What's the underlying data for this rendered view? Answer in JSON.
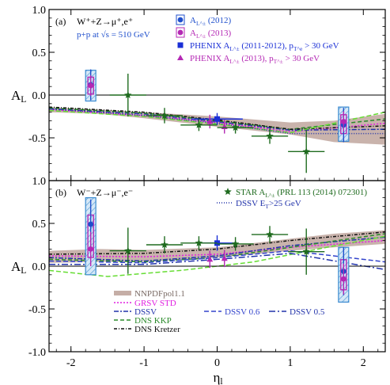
{
  "colors": {
    "star_2012": "#1f4fcc",
    "star_2013": "#b428b4",
    "phenix": "#1a2fd6",
    "star_prl": "#1f6b1f",
    "nnpdf_band": "#b79a90",
    "grsv": "#e020e0",
    "dssv": "#2233aa",
    "dns_kkp": "#2a8a2a",
    "dns_kretzer": "#111111",
    "dssv06": "#3344cc",
    "dssv05": "#2233aa",
    "dssv_et": "#2233aa",
    "lime": "#66dd33"
  },
  "chart_data": [
    {
      "panel_tag": "(a)",
      "type": "scatter",
      "process": "W⁺+Z→μ⁺,e⁺",
      "energy": "p+p at √s = 510 GeV",
      "xlabel": "",
      "ylabel": "A_L",
      "xlim": [
        -2.3,
        2.3
      ],
      "ylim": [
        -1.0,
        1.0
      ],
      "yticks": [
        "1.0",
        "0.5",
        "0.0",
        "-0.5",
        "-1.0"
      ],
      "legend": [
        {
          "key": "star_2012",
          "label": "A_L^± (2012)",
          "marker": "circle"
        },
        {
          "key": "star_2013",
          "label": "A_L^± (2013)",
          "marker": "circle"
        },
        {
          "key": "phenix",
          "label": "PHENIX A_L^± (2011-2012), p_T^e > 30 GeV",
          "marker": "square"
        },
        {
          "key": "phenix13",
          "label": "PHENIX A_L^± (2013), p_T^± > 30 GeV",
          "marker": "triangle"
        }
      ],
      "series": [
        {
          "key": "star_2012",
          "marker": "circle",
          "points": [
            {
              "x": -1.73,
              "y": 0.12,
              "err": 0.18
            },
            {
              "x": 1.73,
              "y": -0.35,
              "err": 0.2
            }
          ]
        },
        {
          "key": "star_2013",
          "marker": "circle",
          "points": [
            {
              "x": -1.73,
              "y": 0.11,
              "err": 0.12
            },
            {
              "x": 1.73,
              "y": -0.31,
              "err": 0.12
            }
          ]
        },
        {
          "key": "phenix",
          "marker": "square",
          "points": [
            {
              "x": 0.0,
              "y": -0.28,
              "err": 0.07,
              "xerr": 0.35
            }
          ]
        },
        {
          "key": "phenix13",
          "marker": "triangle",
          "points": [
            {
              "x": -0.1,
              "y": -0.31,
              "err": 0.08
            },
            {
              "x": 0.1,
              "y": -0.37,
              "err": 0.08
            }
          ]
        },
        {
          "key": "star_prl",
          "marker": "star",
          "points": [
            {
              "x": -1.22,
              "y": 0.0,
              "err": 0.25,
              "xerr": 0.25
            },
            {
              "x": -0.72,
              "y": -0.24,
              "err": 0.09,
              "xerr": 0.25
            },
            {
              "x": -0.25,
              "y": -0.35,
              "err": 0.07,
              "xerr": 0.25
            },
            {
              "x": 0.25,
              "y": -0.38,
              "err": 0.07,
              "xerr": 0.25
            },
            {
              "x": 0.72,
              "y": -0.48,
              "err": 0.09,
              "xerr": 0.25
            },
            {
              "x": 1.22,
              "y": -0.66,
              "err": 0.25,
              "xerr": 0.25
            }
          ]
        }
      ],
      "boxes": [
        {
          "x": -1.73,
          "y": 0.11,
          "dx": 0.07,
          "dy": 0.18
        },
        {
          "x": 1.73,
          "y": -0.34,
          "dx": 0.07,
          "dy": 0.2
        }
      ],
      "band": {
        "x": [
          -2.3,
          -1.6,
          -1.0,
          0.0,
          1.0,
          1.6,
          2.3
        ],
        "low": [
          -0.2,
          -0.22,
          -0.27,
          -0.37,
          -0.46,
          -0.55,
          -0.58
        ],
        "high": [
          -0.14,
          -0.17,
          -0.2,
          -0.25,
          -0.32,
          -0.3,
          -0.22
        ]
      },
      "curves": [
        {
          "key": "grsv",
          "dash": "2,2",
          "x": [
            -2.3,
            -1.0,
            0.0,
            1.0,
            2.3
          ],
          "y": [
            -0.17,
            -0.24,
            -0.32,
            -0.43,
            -0.33
          ]
        },
        {
          "key": "dssv",
          "dash": "6,2,2,2",
          "x": [
            -2.3,
            -1.0,
            0.0,
            1.0,
            2.3
          ],
          "y": [
            -0.16,
            -0.22,
            -0.31,
            -0.41,
            -0.4
          ]
        },
        {
          "key": "dns_kkp",
          "dash": "5,3",
          "x": [
            -2.3,
            -1.0,
            0.0,
            1.0,
            2.3
          ],
          "y": [
            -0.15,
            -0.21,
            -0.3,
            -0.4,
            -0.28
          ]
        },
        {
          "key": "dns_kretzer",
          "dash": "4,2,1,2",
          "x": [
            -2.3,
            -1.0,
            0.0,
            1.0,
            2.3
          ],
          "y": [
            -0.14,
            -0.2,
            -0.29,
            -0.4,
            -0.36
          ]
        },
        {
          "key": "lime",
          "dash": "6,3",
          "x": [
            -2.3,
            -1.0,
            0.0,
            1.0,
            2.3
          ],
          "y": [
            -0.18,
            -0.25,
            -0.34,
            -0.44,
            -0.2
          ]
        },
        {
          "key": "dssv_et",
          "dash": "1,2",
          "x": [
            -2.3,
            -1.0,
            0.0,
            1.0,
            2.3
          ],
          "y": [
            -0.16,
            -0.24,
            -0.33,
            -0.45,
            -0.45
          ]
        }
      ]
    },
    {
      "panel_tag": "(b)",
      "type": "scatter",
      "process": "W⁻+Z→μ⁻,e⁻",
      "xlabel": "η_l",
      "ylabel": "A_L",
      "xlim": [
        -2.3,
        2.3
      ],
      "ylim": [
        -1.0,
        1.0
      ],
      "xticks": [
        "-2",
        "-1",
        "0",
        "1",
        "2"
      ],
      "yticks": [
        "1.0",
        "0.5",
        "0.0",
        "-0.5",
        "-1.0"
      ],
      "legend_top": [
        {
          "key": "star_prl",
          "label": "STAR A_L^± (PRL 113 (2014) 072301)",
          "marker": "star"
        },
        {
          "key": "dssv_et",
          "label": "DSSV E_T>25 GeV",
          "dash": "1,2"
        }
      ],
      "legend_theory": [
        {
          "key": "nnpdf_band",
          "label": "NNPDFpol1.1",
          "band": true
        },
        {
          "key": "grsv",
          "label": "GRSV STD",
          "dash": "2,2"
        },
        {
          "key": "dssv",
          "label": "DSSV",
          "dash": "6,2,2,2"
        },
        {
          "key": "dns_kkp",
          "label": "DNS KKP",
          "dash": "5,3"
        },
        {
          "key": "dns_kretzer",
          "label": "DNS Kretzer",
          "dash": "4,2,1,2"
        },
        {
          "key": "dssv06",
          "label": "DSSV 0.6",
          "dash": "6,3"
        },
        {
          "key": "dssv05",
          "label": "DSSV 0.5",
          "dash": "8,3,2,3"
        }
      ],
      "series": [
        {
          "key": "star_2012",
          "marker": "circle",
          "points": [
            {
              "x": -1.73,
              "y": 0.49,
              "err": 0.29
            },
            {
              "x": 1.73,
              "y": -0.06,
              "err": 0.28
            }
          ]
        },
        {
          "key": "star_2013",
          "marker": "circle",
          "points": [
            {
              "x": -1.73,
              "y": 0.2,
              "err": 0.2
            },
            {
              "x": 1.73,
              "y": -0.15,
              "err": 0.18
            }
          ]
        },
        {
          "key": "phenix",
          "marker": "square",
          "points": [
            {
              "x": 0.0,
              "y": 0.27,
              "err": 0.09,
              "xerr": 0.25
            }
          ]
        },
        {
          "key": "phenix13",
          "marker": "triangle",
          "points": [
            {
              "x": -0.1,
              "y": 0.08,
              "err": 0.1
            },
            {
              "x": 0.1,
              "y": 0.09,
              "err": 0.1
            }
          ]
        },
        {
          "key": "star_prl",
          "marker": "star",
          "points": [
            {
              "x": -1.22,
              "y": 0.18,
              "err": 0.27,
              "xerr": 0.25
            },
            {
              "x": -0.72,
              "y": 0.25,
              "err": 0.1,
              "xerr": 0.25
            },
            {
              "x": -0.25,
              "y": 0.27,
              "err": 0.08,
              "xerr": 0.25
            },
            {
              "x": 0.25,
              "y": 0.26,
              "err": 0.08,
              "xerr": 0.25
            },
            {
              "x": 0.72,
              "y": 0.37,
              "err": 0.1,
              "xerr": 0.25
            },
            {
              "x": 1.22,
              "y": 0.17,
              "err": 0.27,
              "xerr": 0.25
            }
          ]
        }
      ],
      "boxes": [
        {
          "x": -1.73,
          "y": 0.35,
          "dx": 0.07,
          "dy": 0.45
        },
        {
          "x": 1.73,
          "y": -0.1,
          "dx": 0.07,
          "dy": 0.32
        }
      ],
      "band": {
        "x": [
          -2.3,
          -1.6,
          -1.0,
          0.0,
          1.0,
          1.6,
          2.3
        ],
        "low": [
          0.04,
          0.05,
          0.05,
          0.1,
          0.18,
          0.22,
          0.26
        ],
        "high": [
          0.18,
          0.2,
          0.19,
          0.22,
          0.32,
          0.38,
          0.42
        ]
      },
      "curves": [
        {
          "key": "grsv",
          "dash": "2,2",
          "x": [
            -2.3,
            -1.0,
            0.0,
            1.0,
            2.3
          ],
          "y": [
            0.12,
            0.11,
            0.14,
            0.22,
            0.3
          ]
        },
        {
          "key": "dssv",
          "dash": "6,2,2,2",
          "x": [
            -2.3,
            -1.0,
            0.0,
            1.0,
            2.3
          ],
          "y": [
            0.1,
            0.06,
            0.12,
            0.24,
            0.34
          ]
        },
        {
          "key": "dns_kkp",
          "dash": "5,3",
          "x": [
            -2.3,
            -1.0,
            0.0,
            1.0,
            2.3
          ],
          "y": [
            0.08,
            0.05,
            0.1,
            0.22,
            0.38
          ]
        },
        {
          "key": "dns_kretzer",
          "dash": "4,2,1,2",
          "x": [
            -2.3,
            -1.0,
            0.0,
            1.0,
            2.3
          ],
          "y": [
            0.14,
            0.15,
            0.2,
            0.3,
            0.4
          ]
        },
        {
          "key": "lime",
          "dash": "6,3",
          "x": [
            -2.3,
            -1.5,
            -0.5,
            0.5,
            1.5,
            2.3
          ],
          "y": [
            -0.05,
            -0.12,
            -0.05,
            0.05,
            0.22,
            0.35
          ]
        },
        {
          "key": "dssv05",
          "dash": "8,3,2,3",
          "x": [
            -2.3,
            -1.0,
            0.0,
            1.0,
            2.3
          ],
          "y": [
            0.02,
            0.02,
            0.08,
            0.15,
            -0.04
          ]
        },
        {
          "key": "dssv06",
          "dash": "6,3",
          "x": [
            -2.3,
            -1.0,
            0.0,
            1.0,
            2.3
          ],
          "y": [
            0.06,
            0.04,
            0.1,
            0.18,
            0.05
          ]
        }
      ]
    }
  ]
}
